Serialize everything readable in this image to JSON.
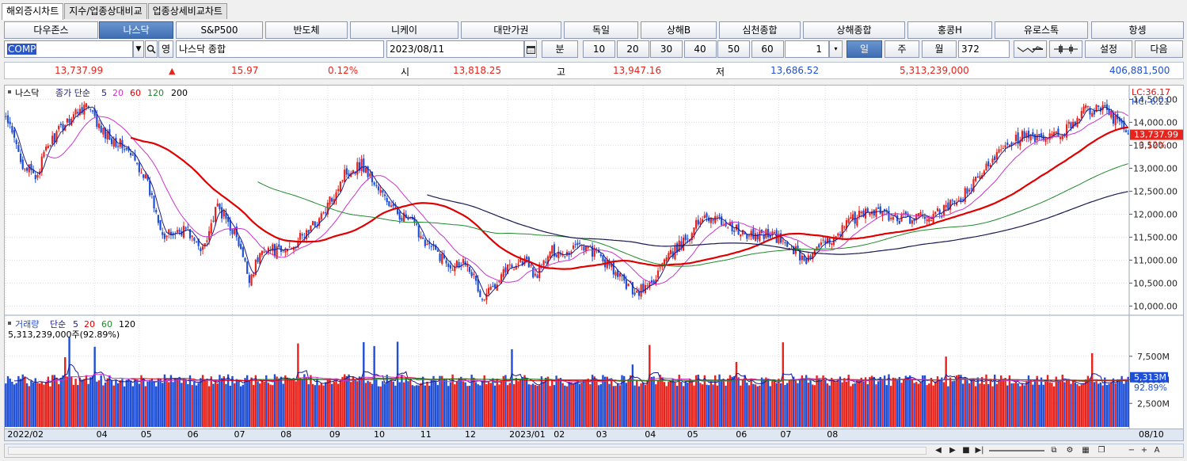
{
  "tabs": [
    "해외증시차트",
    "지수/업종상대비교",
    "업종상세비교차트"
  ],
  "markets": [
    "다우존스",
    "나스닥",
    "S&P500",
    "반도체",
    "니케이",
    "대만가권",
    "독일",
    "상해B",
    "심천종합",
    "상해종합",
    "홍콩H",
    "유로스톡",
    "항셍"
  ],
  "active_market": 1,
  "toolbar": {
    "code": "COMP",
    "lang": "영",
    "name": "나스닥 종합",
    "date": "2023/08/11",
    "min_label": "분",
    "intervals": [
      "10",
      "20",
      "30",
      "40",
      "50",
      "60"
    ],
    "interval_value": "1",
    "periods": [
      "일",
      "주",
      "월"
    ],
    "active_period": 0,
    "count": "372",
    "settings_label": "설정",
    "next_label": "다음"
  },
  "info": {
    "price": "13,737.99",
    "change": "15.97",
    "change_pct": "0.12%",
    "open_label": "시",
    "open": "13,818.25",
    "high_label": "고",
    "high": "13,947.16",
    "low_label": "저",
    "low": "13,686.52",
    "volume": "5,313,239,000",
    "amount": "406,881,500"
  },
  "colors": {
    "up": "#e8231b",
    "down": "#1f4fd6",
    "ma5": "#1a1a8c",
    "ma20": "#cc33cc",
    "ma60": "#e00000",
    "ma120": "#1f8a2a",
    "ma200": "#1a1a50"
  },
  "price_legend": {
    "name": "나스닥",
    "type": "종가 단순",
    "periods": [
      "5",
      "20",
      "60",
      "120",
      "200"
    ]
  },
  "price_labels": {
    "lc": "LC:36.17",
    "hc": "HC:-6.21",
    "last": "13,737.99",
    "pct": "0.12%"
  },
  "volume_legend": {
    "name": "거래량",
    "type": "단순",
    "periods": [
      "5",
      "20",
      "60",
      "120"
    ],
    "detail": "5,313,239,000주(92.89%)"
  },
  "volume_labels": {
    "last": "5,313M",
    "pct": "92.89%"
  },
  "x_labels": [
    "2022/02",
    "04",
    "05",
    "06",
    "07",
    "08",
    "09",
    "10",
    "11",
    "12",
    "2023/01",
    "02",
    "03",
    "04",
    "05",
    "06",
    "07",
    "08"
  ],
  "x_end_label": "08/10",
  "chart_data": {
    "type": "candlestick",
    "y_ticks": [
      10000,
      10500,
      11000,
      11500,
      12000,
      12500,
      13000,
      13500,
      14000,
      14500
    ],
    "y_tick_labels": [
      "10,000.00",
      "10,500.00",
      "11,000.00",
      "11,500.00",
      "12,000.00",
      "12,500.00",
      "13,000.00",
      "13,500.00",
      "14,000.00",
      "14,500.00"
    ],
    "ylim": [
      9800,
      14800
    ],
    "anchors": [
      [
        0,
        14100
      ],
      [
        8,
        13100
      ],
      [
        14,
        12800
      ],
      [
        20,
        13500
      ],
      [
        30,
        14100
      ],
      [
        38,
        14400
      ],
      [
        45,
        13800
      ],
      [
        55,
        13500
      ],
      [
        65,
        12900
      ],
      [
        75,
        11500
      ],
      [
        85,
        11700
      ],
      [
        92,
        11200
      ],
      [
        100,
        12150
      ],
      [
        108,
        11600
      ],
      [
        115,
        10600
      ],
      [
        122,
        11300
      ],
      [
        130,
        11150
      ],
      [
        140,
        11500
      ],
      [
        150,
        12000
      ],
      [
        160,
        12900
      ],
      [
        168,
        13100
      ],
      [
        175,
        12600
      ],
      [
        183,
        12100
      ],
      [
        192,
        11800
      ],
      [
        200,
        11300
      ],
      [
        210,
        10900
      ],
      [
        218,
        11000
      ],
      [
        225,
        10100
      ],
      [
        235,
        10800
      ],
      [
        245,
        11000
      ],
      [
        250,
        10650
      ],
      [
        258,
        11200
      ],
      [
        265,
        11150
      ],
      [
        270,
        11400
      ],
      [
        280,
        11100
      ],
      [
        290,
        10600
      ],
      [
        298,
        10300
      ],
      [
        305,
        10500
      ],
      [
        310,
        10900
      ],
      [
        320,
        11400
      ],
      [
        330,
        12000
      ],
      [
        340,
        11800
      ],
      [
        350,
        11500
      ],
      [
        360,
        11600
      ],
      [
        370,
        11300
      ],
      [
        378,
        11000
      ],
      [
        388,
        11400
      ],
      [
        400,
        11900
      ],
      [
        410,
        12100
      ],
      [
        420,
        11900
      ],
      [
        430,
        11900
      ],
      [
        440,
        12000
      ],
      [
        450,
        12300
      ],
      [
        460,
        12800
      ],
      [
        470,
        13500
      ],
      [
        480,
        13700
      ],
      [
        490,
        13600
      ],
      [
        500,
        13800
      ],
      [
        510,
        14300
      ],
      [
        520,
        14250
      ],
      [
        525,
        14000
      ],
      [
        530,
        13738
      ]
    ],
    "total_bars": 531,
    "volume_ticks": [
      2500,
      5000,
      7500
    ],
    "volume_tick_labels": [
      "2,500M",
      "5,000M",
      "7,500M"
    ],
    "volume_ylim": [
      0,
      10000
    ]
  }
}
